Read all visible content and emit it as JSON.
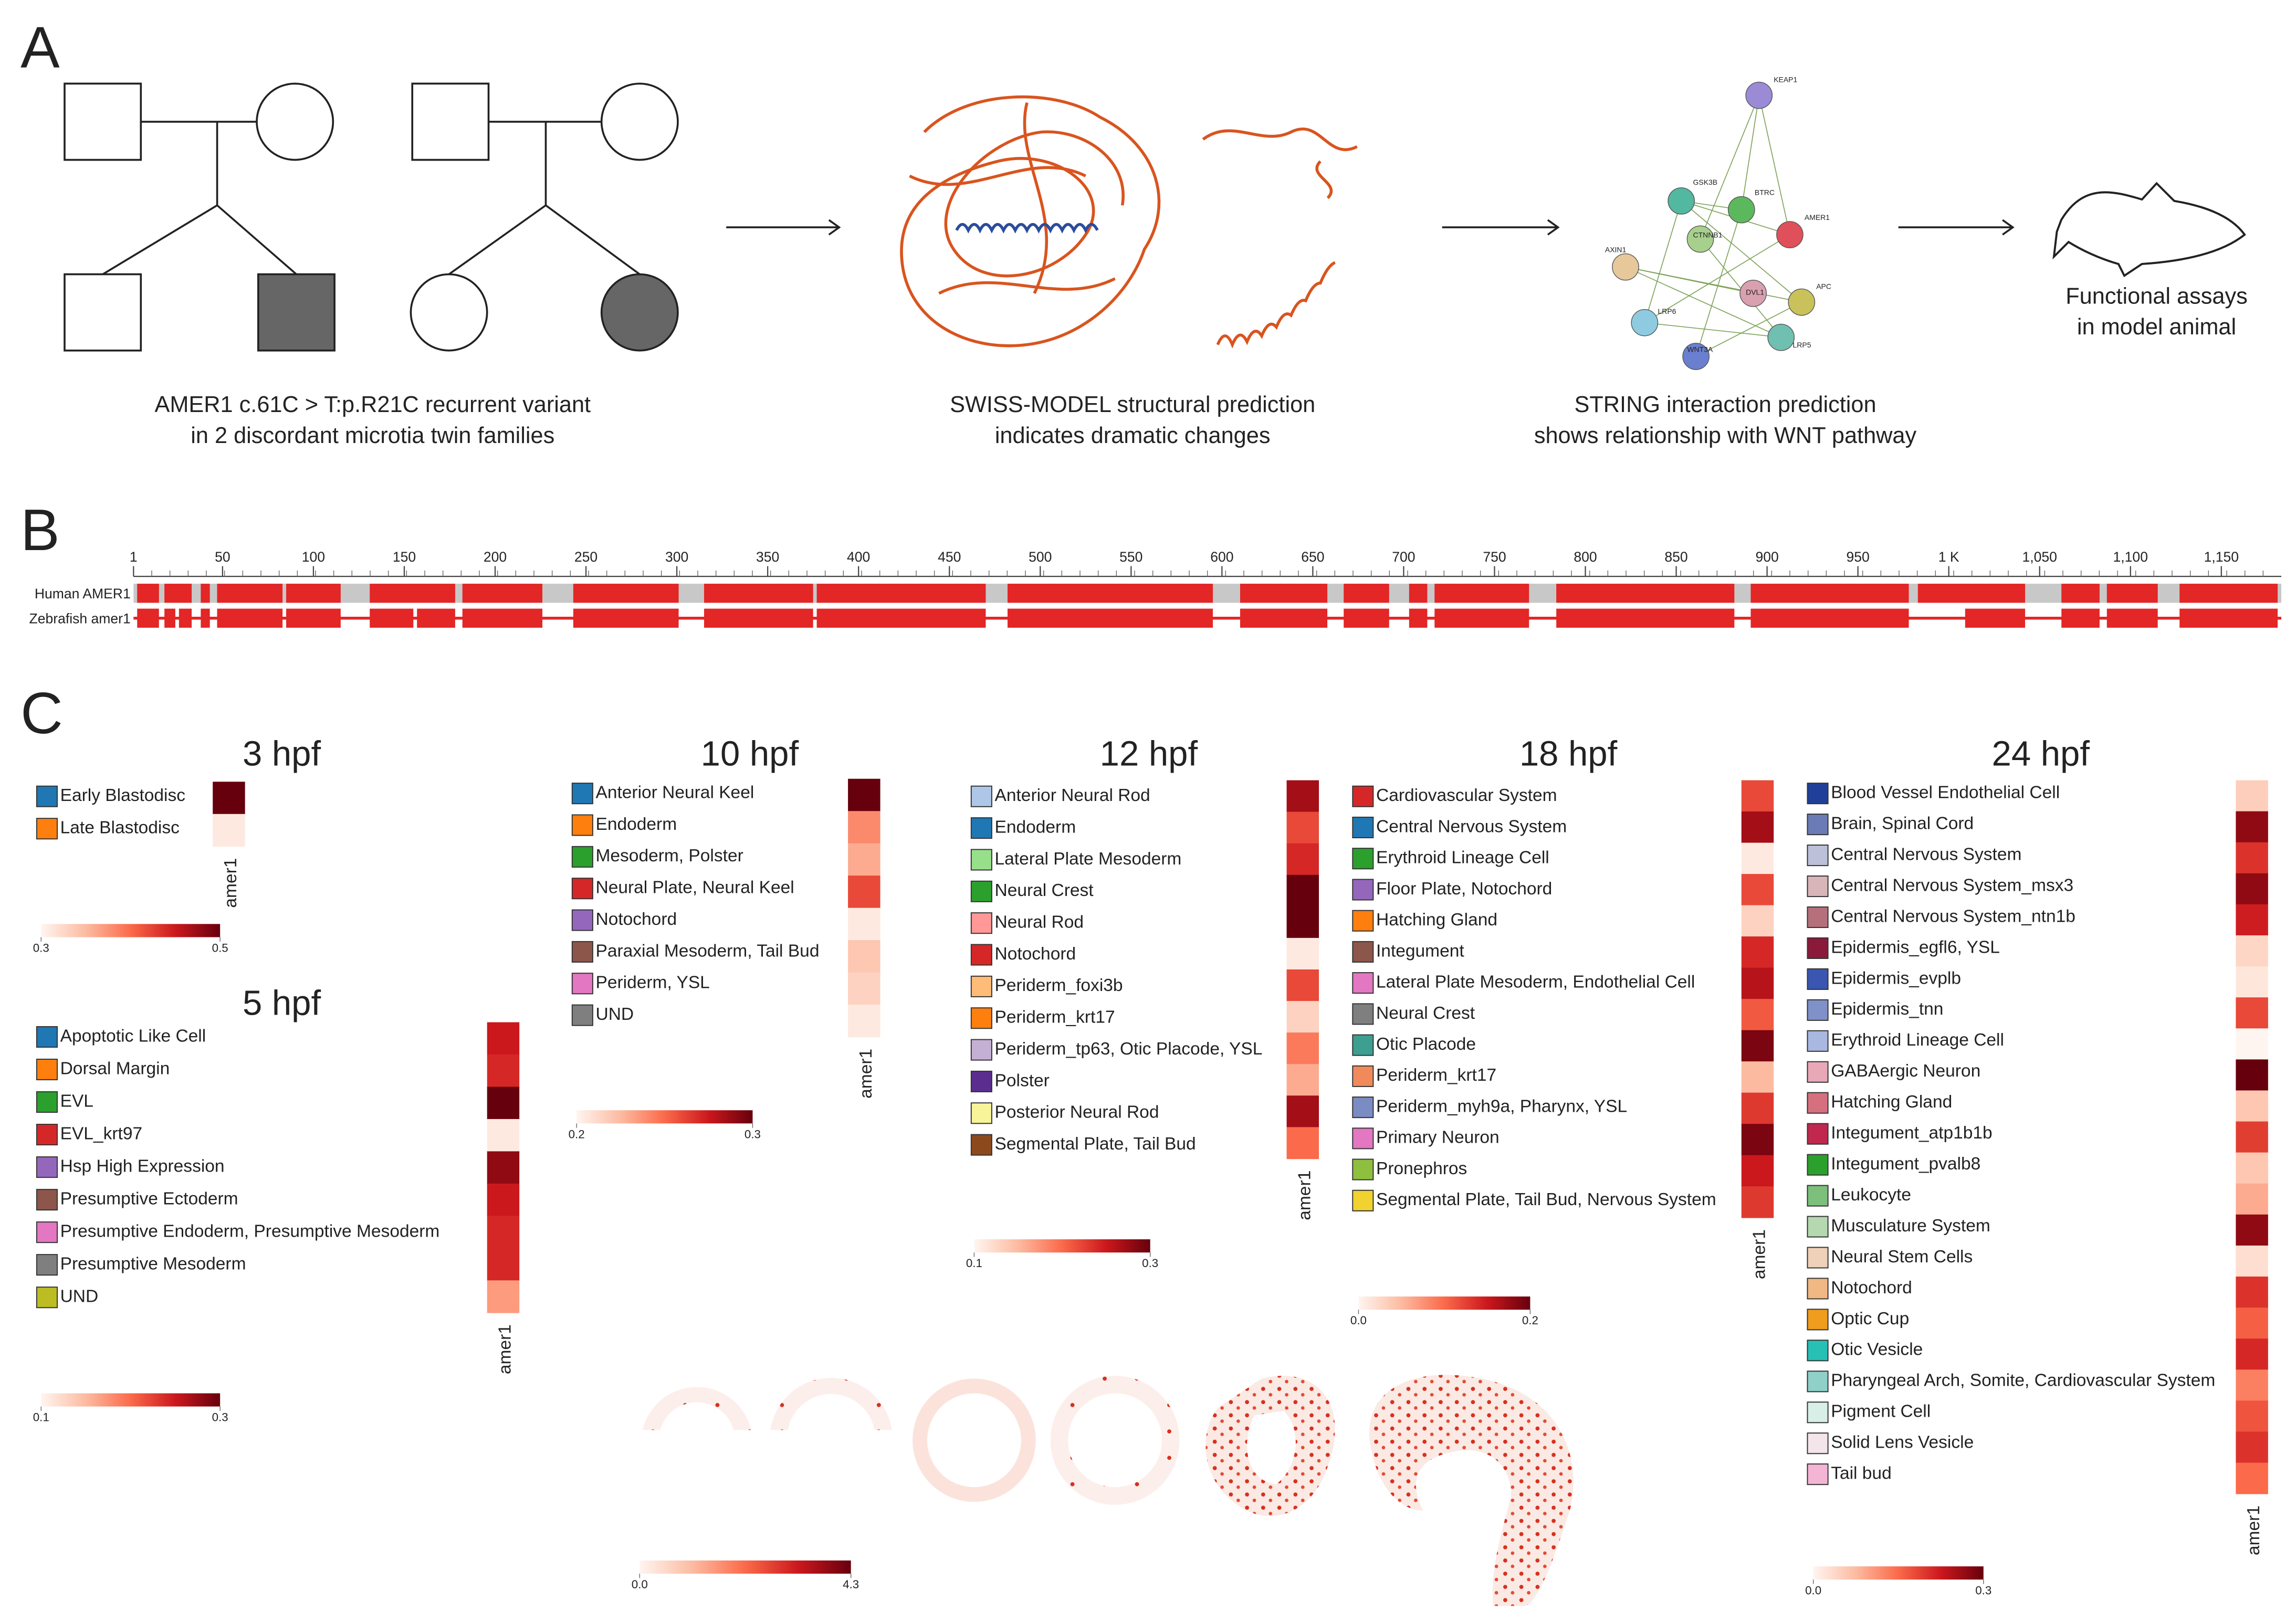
{
  "panels": {
    "A": {
      "label": "A",
      "pedigree_caption": [
        "AMER1 c.61C > T:p.R21C recurrent variant",
        "in 2 discordant microtia twin families"
      ],
      "structure_caption": [
        "SWISS-MODEL structural prediction",
        "indicates dramatic changes"
      ],
      "string_caption": [
        "STRING interaction prediction",
        "shows relationship with WNT pathway"
      ],
      "network_nodes": [
        "KEAP1",
        "GSK3B",
        "BTRC",
        "AMER1",
        "CTNNB1",
        "AXIN1",
        "APC",
        "DVL1",
        "LRP6",
        "LRP5",
        "WNT3A"
      ],
      "assay_caption": [
        "Functional assays",
        "in model animal"
      ]
    },
    "B": {
      "label": "B",
      "xlim": [
        1,
        1183
      ],
      "xticks": [
        1,
        50,
        100,
        150,
        200,
        250,
        300,
        350,
        400,
        450,
        500,
        550,
        600,
        650,
        700,
        750,
        800,
        850,
        900,
        950,
        {
          "value": 1000,
          "label": "1 K"
        },
        {
          "value": 1050,
          "label": "1,050"
        },
        {
          "value": 1100,
          "label": "1,100"
        },
        {
          "value": 1150,
          "label": "1,150"
        }
      ],
      "tracks": [
        {
          "name": "Human AMER1",
          "color": "#e32626",
          "blocks": [
            [
              3,
              15
            ],
            [
              18,
              33
            ],
            [
              38,
              43
            ],
            [
              47,
              83
            ],
            [
              85,
              115
            ],
            [
              131,
              178
            ],
            [
              182,
              226
            ],
            [
              243,
              301
            ],
            [
              315,
              375
            ],
            [
              377,
              470
            ],
            [
              482,
              595
            ],
            [
              610,
              658
            ],
            [
              667,
              692
            ],
            [
              703,
              713
            ],
            [
              717,
              769
            ],
            [
              784,
              882
            ],
            [
              891,
              978
            ],
            [
              983,
              1042
            ],
            [
              1062,
              1083
            ],
            [
              1087,
              1115
            ],
            [
              1127,
              1181
            ]
          ]
        },
        {
          "name": "Zebrafish amer1",
          "color": "#e32626",
          "blocks": [
            [
              3,
              15
            ],
            [
              18,
              24
            ],
            [
              26,
              33
            ],
            [
              38,
              43
            ],
            [
              47,
              83
            ],
            [
              85,
              115
            ],
            [
              131,
              155
            ],
            [
              157,
              178
            ],
            [
              182,
              226
            ],
            [
              243,
              301
            ],
            [
              315,
              375
            ],
            [
              377,
              470
            ],
            [
              482,
              595
            ],
            [
              610,
              658
            ],
            [
              667,
              692
            ],
            [
              703,
              713
            ],
            [
              717,
              769
            ],
            [
              784,
              882
            ],
            [
              891,
              978
            ],
            [
              1009,
              1042
            ],
            [
              1062,
              1083
            ],
            [
              1087,
              1115
            ],
            [
              1127,
              1181
            ]
          ]
        }
      ]
    },
    "C": {
      "label": "C",
      "heatmaps": [
        {
          "title": "3 hpf",
          "gene": "amer1",
          "clim": [
            0.3,
            0.5
          ],
          "cticks": [
            0.3,
            0.5
          ],
          "categories": [
            "Early Blastodisc",
            "Late Blastodisc"
          ],
          "colors": [
            "#1f77b4",
            "#ff7f0e"
          ],
          "values": [
            0.5,
            0.31
          ]
        },
        {
          "title": "5 hpf",
          "gene": "amer1",
          "clim": [
            0.1,
            0.3
          ],
          "cticks": [
            0.1,
            0.3
          ],
          "categories": [
            "Apoptotic Like Cell",
            "Dorsal Margin",
            "EVL",
            "EVL_krt97",
            "Hsp High Expression",
            "Presumptive Ectoderm",
            "Presumptive Endoderm, Presumptive Mesoderm",
            "Presumptive Mesoderm",
            "UND"
          ],
          "colors": [
            "#1f77b4",
            "#ff7f0e",
            "#2ca02c",
            "#d62728",
            "#9467bd",
            "#8c564b",
            "#e377c2",
            "#7f7f7f",
            "#bcbd22"
          ],
          "values": [
            0.25,
            0.24,
            0.3,
            0.11,
            0.28,
            0.25,
            0.24,
            0.24,
            0.17
          ]
        },
        {
          "title": "10 hpf",
          "gene": "amer1",
          "clim": [
            0.2,
            0.3
          ],
          "cticks": [
            0.2,
            0.3
          ],
          "categories": [
            "Anterior Neural Keel",
            "Endoderm",
            "Mesoderm, Polster",
            "Neural Plate, Neural Keel",
            "Notochord",
            "Paraxial Mesoderm, Tail Bud",
            "Periderm, YSL",
            "UND"
          ],
          "colors": [
            "#1f77b4",
            "#ff7f0e",
            "#2ca02c",
            "#d62728",
            "#9467bd",
            "#8c564b",
            "#e377c2",
            "#7f7f7f"
          ],
          "values": [
            0.3,
            0.24,
            0.23,
            0.26,
            0.205,
            0.22,
            0.215,
            0.205
          ]
        },
        {
          "title": "12 hpf",
          "gene": "amer1",
          "clim": [
            0.1,
            0.3
          ],
          "cticks": [
            0.1,
            0.3
          ],
          "categories": [
            "Anterior Neural Rod",
            "Endoderm",
            "Lateral Plate Mesoderm",
            "Neural Crest",
            "Neural Rod",
            "Notochord",
            "Periderm_foxi3b",
            "Periderm_krt17",
            "Periderm_tp63, Otic Placode, YSL",
            "Polster",
            "Posterior Neural Rod",
            "Segmental Plate, Tail Bud"
          ],
          "colors": [
            "#aec7e8",
            "#1f77b4",
            "#98df8a",
            "#2ca02c",
            "#ff9896",
            "#d62728",
            "#ffbb78",
            "#ff7f0e",
            "#c5b0d5",
            "#5b2d8e",
            "#f7f49a",
            "#8c4a1c"
          ],
          "values": [
            0.27,
            0.22,
            0.24,
            0.3,
            0.3,
            0.11,
            0.22,
            0.13,
            0.19,
            0.16,
            0.27,
            0.2
          ]
        },
        {
          "title": "18 hpf",
          "gene": "amer1",
          "clim": [
            0,
            0.2
          ],
          "cticks": [
            {
              "value": 0,
              "label": "0.0"
            },
            0.2
          ],
          "categories": [
            "Cardiovascular System",
            "Central Nervous System",
            "Erythroid Lineage Cell",
            "Floor Plate, Notochord",
            "Hatching Gland",
            "Integument",
            "Lateral Plate Mesoderm, Endothelial Cell",
            "Neural Crest",
            "Otic Placode",
            "Periderm_krt17",
            "Periderm_myh9a, Pharynx, YSL",
            "Primary Neuron",
            "Pronephros",
            "Segmental Plate, Tail Bud, Nervous System"
          ],
          "colors": [
            "#d62728",
            "#1f77b4",
            "#2ca02c",
            "#9467bd",
            "#ff7f0e",
            "#8c564b",
            "#e377c2",
            "#7f7f7f",
            "#3d9f8f",
            "#f08a5b",
            "#7b8cc4",
            "#e377c2",
            "#8fbf3f",
            "#f2d22e"
          ],
          "values": [
            0.12,
            0.17,
            0.01,
            0.12,
            0.03,
            0.14,
            0.16,
            0.11,
            0.19,
            0.05,
            0.13,
            0.19,
            0.15,
            0.13
          ]
        },
        {
          "title": "24 hpf",
          "gene": "amer1",
          "clim": [
            0,
            0.3
          ],
          "cticks": [
            {
              "value": 0,
              "label": "0.0"
            },
            0.3
          ],
          "categories": [
            "Blood Vessel Endothelial Cell",
            "Brain, Spinal Cord",
            "Central Nervous System",
            "Central Nervous System_msx3",
            "Central Nervous System_ntn1b",
            "Epidermis_egfl6, YSL",
            "Epidermis_evplb",
            "Epidermis_tnn",
            "Erythroid Lineage Cell",
            "GABAergic Neuron",
            "Hatching Gland",
            "Integument_atp1b1b",
            "Integument_pvalb8",
            "Leukocyte",
            "Musculature System",
            "Neural Stem Cells",
            "Notochord",
            "Optic Cup",
            "Otic Vesicle",
            "Pharyngeal Arch, Somite, Cardiovascular System",
            "Pigment Cell",
            "Solid Lens Vesicle",
            "Tail bud"
          ],
          "colors": [
            "#1f3f99",
            "#6b7bb5",
            "#bcc0d8",
            "#d8b5b8",
            "#b5707c",
            "#8b1a3a",
            "#3a56b0",
            "#8090c8",
            "#a9b8e0",
            "#e8a8b8",
            "#d6707f",
            "#c0284e",
            "#2ca02c",
            "#7cc07c",
            "#b5d8b0",
            "#efd0b8",
            "#f0b884",
            "#f09c1c",
            "#27c0b5",
            "#8fd0c8",
            "#d8efe8",
            "#f3e5ea",
            "#f4b5d5"
          ],
          "values": [
            0.05,
            0.27,
            0.2,
            0.27,
            0.22,
            0.04,
            0.02,
            0.18,
            0.0,
            0.3,
            0.06,
            0.19,
            0.06,
            0.09,
            0.27,
            0.03,
            0.2,
            0.16,
            0.21,
            0.13,
            0.17,
            0.2,
            0.15
          ]
        }
      ],
      "spatial": {
        "clim": [
          0,
          4.3
        ],
        "cticks": [
          {
            "value": 0,
            "label": "0.0"
          },
          4.3
        ]
      }
    }
  }
}
